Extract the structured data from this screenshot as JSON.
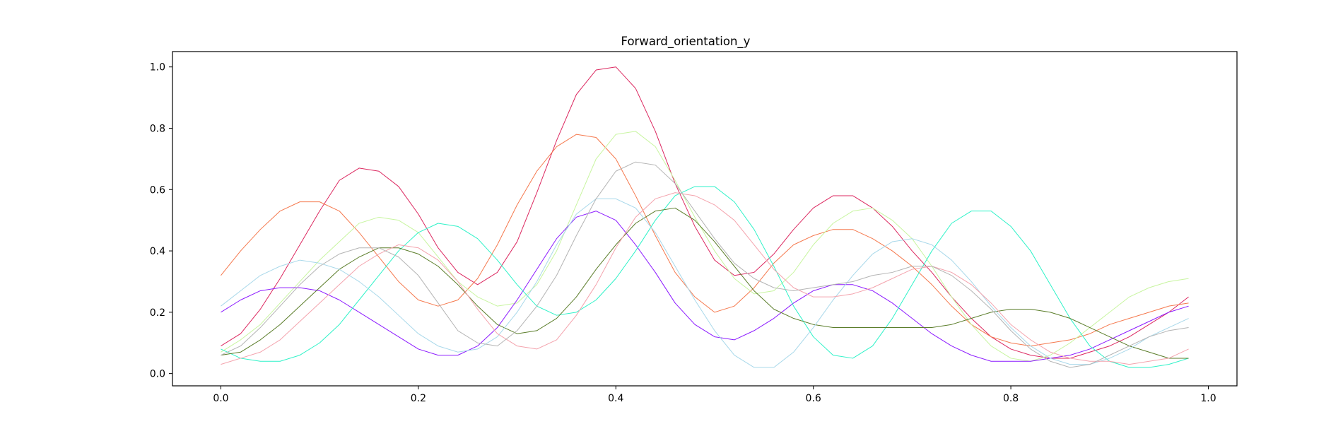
{
  "chart_data": {
    "type": "line",
    "title": "Forward_orientation_y",
    "xlabel": "",
    "ylabel": "",
    "xlim": [
      -0.049,
      1.029
    ],
    "ylim": [
      -0.04,
      1.05
    ],
    "xticks": [
      0.0,
      0.2,
      0.4,
      0.6,
      0.8,
      1.0
    ],
    "xtick_labels": [
      "0.0",
      "0.2",
      "0.4",
      "0.6",
      "0.8",
      "1.0"
    ],
    "yticks": [
      0.0,
      0.2,
      0.4,
      0.6,
      0.8,
      1.0
    ],
    "ytick_labels": [
      "0.0",
      "0.2",
      "0.4",
      "0.6",
      "0.8",
      "1.0"
    ],
    "grid": false,
    "x": [
      0.0,
      0.02,
      0.04,
      0.06,
      0.08,
      0.1,
      0.12,
      0.14,
      0.16,
      0.18,
      0.2,
      0.22,
      0.24,
      0.26,
      0.28,
      0.3,
      0.32,
      0.34,
      0.36,
      0.38,
      0.4,
      0.42,
      0.44,
      0.46,
      0.48,
      0.5,
      0.52,
      0.54,
      0.56,
      0.58,
      0.6,
      0.62,
      0.64,
      0.66,
      0.68,
      0.7,
      0.72,
      0.74,
      0.76,
      0.78,
      0.8,
      0.82,
      0.84,
      0.86,
      0.88,
      0.9,
      0.92,
      0.94,
      0.96,
      0.98
    ],
    "series": [
      {
        "color": "#dc2860",
        "values": [
          0.09,
          0.13,
          0.21,
          0.31,
          0.42,
          0.53,
          0.63,
          0.67,
          0.66,
          0.61,
          0.52,
          0.41,
          0.33,
          0.29,
          0.33,
          0.43,
          0.59,
          0.76,
          0.91,
          0.99,
          1.0,
          0.93,
          0.79,
          0.62,
          0.48,
          0.37,
          0.32,
          0.33,
          0.39,
          0.47,
          0.54,
          0.58,
          0.58,
          0.54,
          0.48,
          0.4,
          0.33,
          0.25,
          0.18,
          0.12,
          0.08,
          0.06,
          0.05,
          0.05,
          0.07,
          0.09,
          0.12,
          0.16,
          0.2,
          0.25
        ]
      },
      {
        "color": "#f5794e",
        "values": [
          0.32,
          0.4,
          0.47,
          0.53,
          0.56,
          0.56,
          0.53,
          0.46,
          0.38,
          0.3,
          0.24,
          0.22,
          0.24,
          0.31,
          0.42,
          0.55,
          0.66,
          0.74,
          0.78,
          0.77,
          0.7,
          0.58,
          0.45,
          0.33,
          0.25,
          0.2,
          0.22,
          0.28,
          0.36,
          0.42,
          0.45,
          0.47,
          0.47,
          0.44,
          0.4,
          0.35,
          0.29,
          0.22,
          0.16,
          0.12,
          0.1,
          0.09,
          0.1,
          0.11,
          0.13,
          0.16,
          0.18,
          0.2,
          0.22,
          0.23
        ]
      },
      {
        "color": "#c8f5a0",
        "values": [
          0.07,
          0.11,
          0.16,
          0.23,
          0.3,
          0.37,
          0.43,
          0.49,
          0.51,
          0.5,
          0.46,
          0.38,
          0.3,
          0.25,
          0.22,
          0.23,
          0.29,
          0.4,
          0.55,
          0.7,
          0.78,
          0.79,
          0.74,
          0.63,
          0.51,
          0.4,
          0.31,
          0.26,
          0.27,
          0.33,
          0.42,
          0.49,
          0.53,
          0.54,
          0.5,
          0.44,
          0.35,
          0.25,
          0.16,
          0.09,
          0.05,
          0.04,
          0.06,
          0.1,
          0.15,
          0.2,
          0.25,
          0.28,
          0.3,
          0.31
        ]
      },
      {
        "color": "#8c1aff",
        "values": [
          0.2,
          0.24,
          0.27,
          0.28,
          0.28,
          0.27,
          0.24,
          0.2,
          0.16,
          0.12,
          0.08,
          0.06,
          0.06,
          0.09,
          0.15,
          0.24,
          0.34,
          0.44,
          0.51,
          0.53,
          0.5,
          0.42,
          0.33,
          0.23,
          0.16,
          0.12,
          0.11,
          0.14,
          0.18,
          0.23,
          0.27,
          0.29,
          0.29,
          0.27,
          0.23,
          0.18,
          0.13,
          0.09,
          0.06,
          0.04,
          0.04,
          0.04,
          0.05,
          0.06,
          0.08,
          0.11,
          0.14,
          0.17,
          0.2,
          0.22
        ]
      },
      {
        "color": "#2ef2c8",
        "values": [
          0.08,
          0.05,
          0.04,
          0.04,
          0.06,
          0.1,
          0.16,
          0.24,
          0.32,
          0.4,
          0.46,
          0.49,
          0.48,
          0.44,
          0.37,
          0.29,
          0.22,
          0.19,
          0.2,
          0.24,
          0.31,
          0.4,
          0.5,
          0.58,
          0.61,
          0.61,
          0.56,
          0.47,
          0.35,
          0.22,
          0.12,
          0.06,
          0.05,
          0.09,
          0.18,
          0.29,
          0.4,
          0.49,
          0.53,
          0.53,
          0.48,
          0.4,
          0.29,
          0.18,
          0.09,
          0.04,
          0.02,
          0.02,
          0.03,
          0.05
        ]
      },
      {
        "color": "#5b7d2a",
        "values": [
          0.06,
          0.07,
          0.11,
          0.16,
          0.22,
          0.28,
          0.34,
          0.38,
          0.41,
          0.41,
          0.39,
          0.35,
          0.29,
          0.22,
          0.16,
          0.13,
          0.14,
          0.18,
          0.25,
          0.34,
          0.42,
          0.49,
          0.53,
          0.54,
          0.5,
          0.43,
          0.35,
          0.27,
          0.21,
          0.18,
          0.16,
          0.15,
          0.15,
          0.15,
          0.15,
          0.15,
          0.15,
          0.16,
          0.18,
          0.2,
          0.21,
          0.21,
          0.2,
          0.18,
          0.15,
          0.12,
          0.09,
          0.07,
          0.05,
          0.05
        ]
      },
      {
        "color": "#a8d8ea",
        "values": [
          0.22,
          0.27,
          0.32,
          0.35,
          0.37,
          0.36,
          0.34,
          0.3,
          0.25,
          0.19,
          0.13,
          0.09,
          0.07,
          0.08,
          0.12,
          0.2,
          0.3,
          0.42,
          0.52,
          0.57,
          0.57,
          0.54,
          0.46,
          0.35,
          0.24,
          0.14,
          0.06,
          0.02,
          0.02,
          0.07,
          0.15,
          0.24,
          0.32,
          0.39,
          0.43,
          0.44,
          0.42,
          0.37,
          0.3,
          0.22,
          0.15,
          0.09,
          0.05,
          0.03,
          0.03,
          0.05,
          0.08,
          0.12,
          0.15,
          0.18
        ]
      },
      {
        "color": "#f4a3ad",
        "values": [
          0.03,
          0.05,
          0.07,
          0.11,
          0.17,
          0.23,
          0.29,
          0.35,
          0.39,
          0.42,
          0.41,
          0.37,
          0.3,
          0.21,
          0.13,
          0.09,
          0.08,
          0.11,
          0.19,
          0.29,
          0.41,
          0.51,
          0.57,
          0.59,
          0.58,
          0.55,
          0.5,
          0.42,
          0.34,
          0.28,
          0.25,
          0.25,
          0.26,
          0.28,
          0.31,
          0.34,
          0.35,
          0.33,
          0.29,
          0.23,
          0.16,
          0.11,
          0.07,
          0.05,
          0.04,
          0.04,
          0.03,
          0.04,
          0.05,
          0.08
        ]
      },
      {
        "color": "#b4b4b4",
        "values": [
          0.06,
          0.09,
          0.15,
          0.22,
          0.29,
          0.35,
          0.39,
          0.41,
          0.41,
          0.38,
          0.32,
          0.23,
          0.14,
          0.1,
          0.09,
          0.14,
          0.22,
          0.32,
          0.45,
          0.57,
          0.66,
          0.69,
          0.68,
          0.62,
          0.53,
          0.44,
          0.36,
          0.31,
          0.28,
          0.27,
          0.28,
          0.29,
          0.3,
          0.32,
          0.33,
          0.35,
          0.35,
          0.32,
          0.27,
          0.21,
          0.14,
          0.08,
          0.04,
          0.02,
          0.03,
          0.06,
          0.09,
          0.12,
          0.14,
          0.15
        ]
      }
    ]
  }
}
